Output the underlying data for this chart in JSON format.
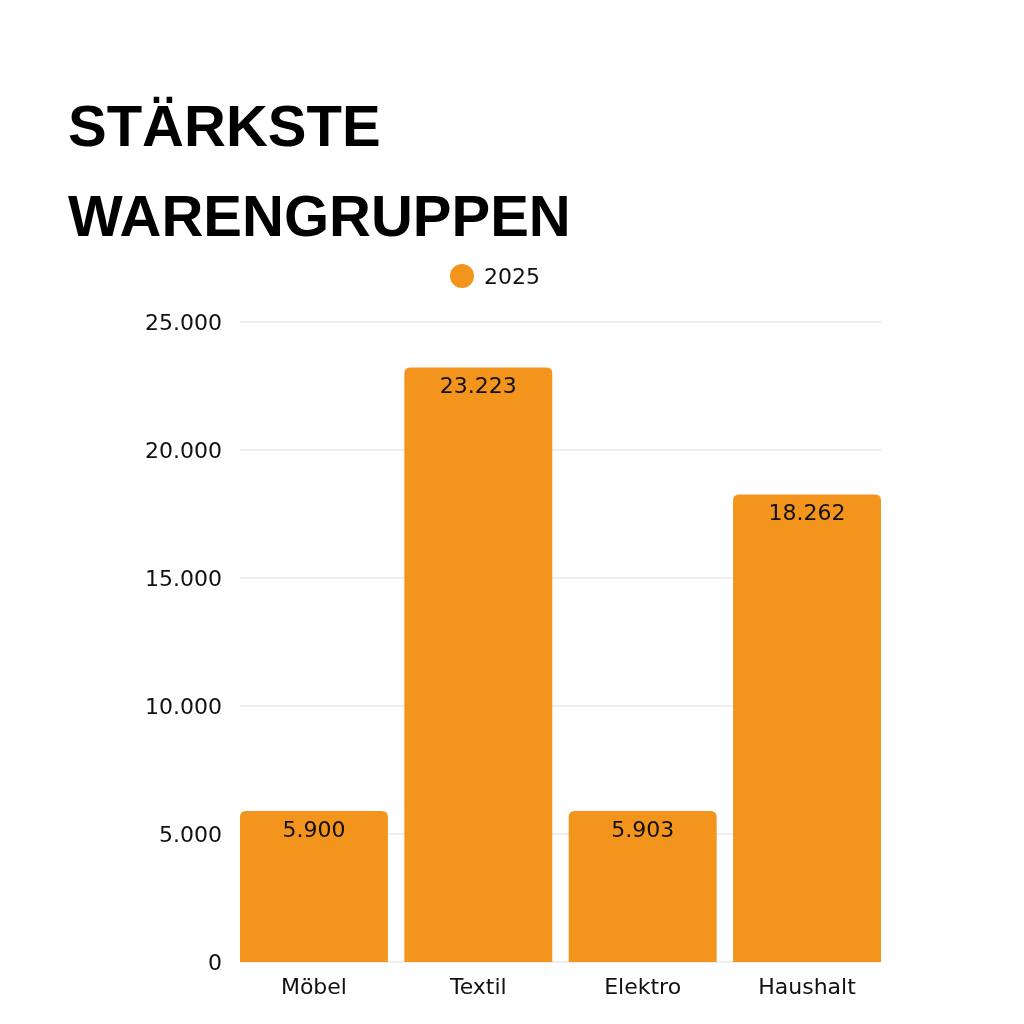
{
  "chart_data": {
    "type": "bar",
    "title": "STÄRKSTE WARENGRUPPEN",
    "categories": [
      "Möbel",
      "Textil",
      "Elektro",
      "Haushalt"
    ],
    "series": [
      {
        "name": "2025",
        "color": "#f3941c",
        "values": [
          5900,
          23223,
          5903,
          18262
        ],
        "value_labels": [
          "5.900",
          "23.223",
          "5.903",
          "18.262"
        ]
      }
    ],
    "ylim": [
      0,
      25000
    ],
    "yticks": [
      {
        "value": 0,
        "label": "0"
      },
      {
        "value": 5000,
        "label": "5.000"
      },
      {
        "value": 10000,
        "label": "10.000"
      },
      {
        "value": 15000,
        "label": "15.000"
      },
      {
        "value": 20000,
        "label": "20.000"
      },
      {
        "value": 25000,
        "label": "25.000"
      }
    ],
    "grid": "y",
    "legend": "top"
  }
}
